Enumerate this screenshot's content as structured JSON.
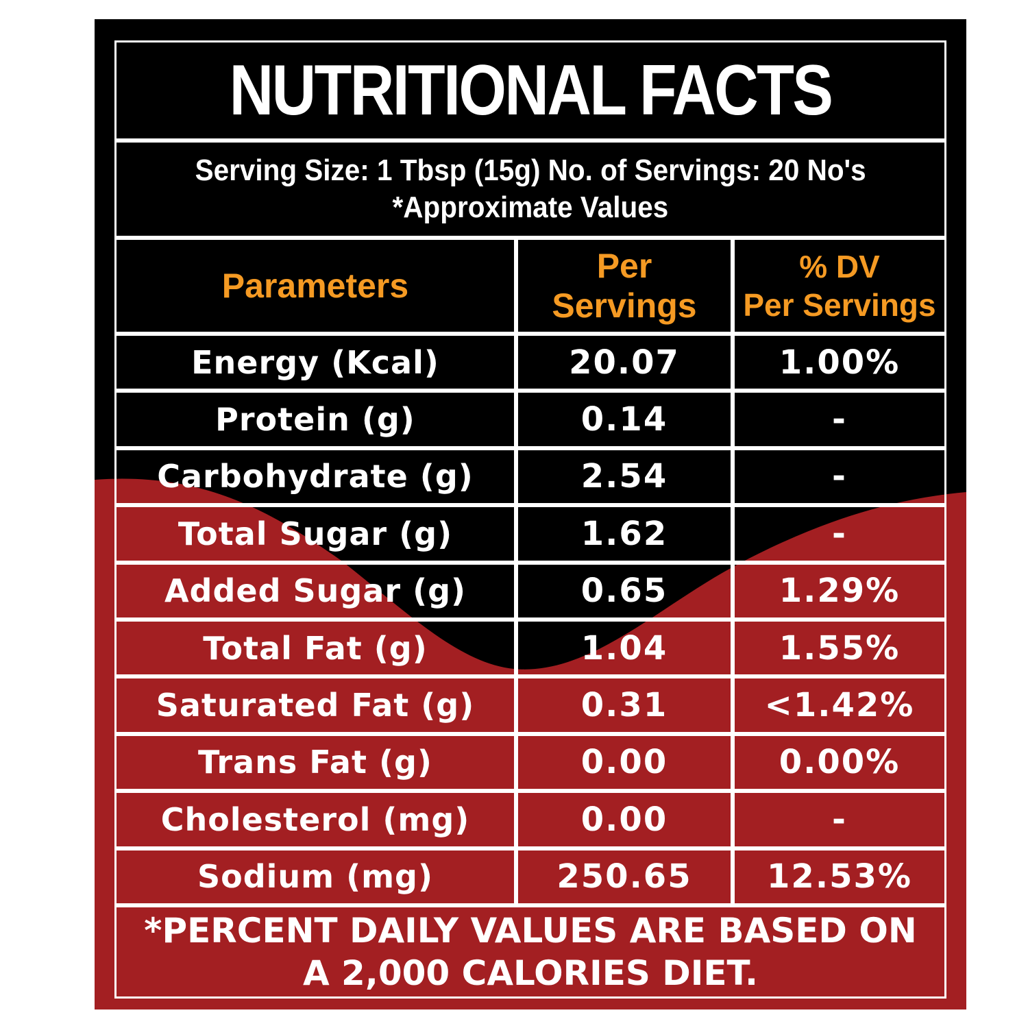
{
  "label": {
    "title": "NUTRITIONAL FACTS",
    "serving_line": "Serving Size: 1 Tbsp (15g) No. of Servings: 20 No's",
    "approx_line": "*Approximate Values",
    "headers": {
      "parameters": "Parameters",
      "per_servings_line1": "Per",
      "per_servings_line2": "Servings",
      "dv_line1": "% DV",
      "dv_line2": "Per Servings"
    },
    "rows": [
      {
        "parameter": "Energy (Kcal)",
        "per_serving": "20.07",
        "dv": "1.00%"
      },
      {
        "parameter": "Protein (g)",
        "per_serving": "0.14",
        "dv": "-"
      },
      {
        "parameter": "Carbohydrate (g)",
        "per_serving": "2.54",
        "dv": "-"
      },
      {
        "parameter": "Total Sugar (g)",
        "per_serving": "1.62",
        "dv": "-"
      },
      {
        "parameter": "Added Sugar (g)",
        "per_serving": "0.65",
        "dv": "1.29%"
      },
      {
        "parameter": "Total Fat (g)",
        "per_serving": "1.04",
        "dv": "1.55%"
      },
      {
        "parameter": "Saturated Fat (g)",
        "per_serving": "0.31",
        "dv": "<1.42%"
      },
      {
        "parameter": "Trans Fat (g)",
        "per_serving": "0.00",
        "dv": "0.00%"
      },
      {
        "parameter": "Cholesterol (mg)",
        "per_serving": "0.00",
        "dv": "-"
      },
      {
        "parameter": "Sodium (mg)",
        "per_serving": "250.65",
        "dv": "12.53%"
      }
    ],
    "footnote_line1": "*PERCENT DAILY VALUES ARE BASED ON",
    "footnote_line2": "A 2,000 CALORIES DIET."
  },
  "colors": {
    "background": "#000000",
    "wave_red": "#a31f22",
    "header_orange": "#f59a23",
    "text_white": "#ffffff"
  }
}
